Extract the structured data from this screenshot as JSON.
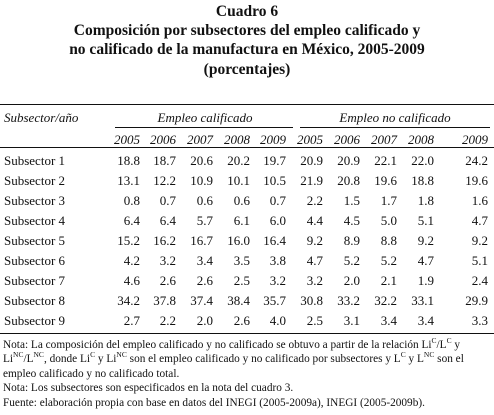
{
  "header": {
    "label": "Cuadro 6",
    "title": [
      "Composición por subsectores del empleo calificado y",
      "no calificado de la manufactura en México, 2005-2009"
    ],
    "subtitle": "(porcentajes)"
  },
  "table": {
    "stub_header": "Subsector/año",
    "groups": [
      "Empleo calificado",
      "Empleo no calificado"
    ],
    "years": [
      "2005",
      "2006",
      "2007",
      "2008",
      "2009",
      "2005",
      "2006",
      "2007",
      "2008",
      "2009"
    ],
    "rows": [
      {
        "label": "Subsector 1",
        "values": [
          "18.8",
          "18.7",
          "20.6",
          "20.2",
          "19.7",
          "20.9",
          "20.9",
          "22.1",
          "22.0",
          "24.2"
        ]
      },
      {
        "label": "Subsector 2",
        "values": [
          "13.1",
          "12.2",
          "10.9",
          "10.1",
          "10.5",
          "21.9",
          "20.8",
          "19.6",
          "18.8",
          "19.6"
        ]
      },
      {
        "label": "Subsector 3",
        "values": [
          "0.8",
          "0.7",
          "0.6",
          "0.6",
          "0.7",
          "2.2",
          "1.5",
          "1.7",
          "1.8",
          "1.6"
        ]
      },
      {
        "label": "Subsector 4",
        "values": [
          "6.4",
          "6.4",
          "5.7",
          "6.1",
          "6.0",
          "4.4",
          "4.5",
          "5.0",
          "5.1",
          "4.7"
        ]
      },
      {
        "label": "Subsector 5",
        "values": [
          "15.2",
          "16.2",
          "16.7",
          "16.0",
          "16.4",
          "9.2",
          "8.9",
          "8.8",
          "9.2",
          "9.2"
        ]
      },
      {
        "label": "Subsector 6",
        "values": [
          "4.2",
          "3.2",
          "3.4",
          "3.5",
          "3.8",
          "4.7",
          "5.2",
          "5.2",
          "4.7",
          "5.1"
        ]
      },
      {
        "label": "Subsector 7",
        "values": [
          "4.6",
          "2.6",
          "2.6",
          "2.5",
          "3.2",
          "3.2",
          "2.0",
          "2.1",
          "1.9",
          "2.4"
        ]
      },
      {
        "label": "Subsector 8",
        "values": [
          "34.2",
          "37.8",
          "37.4",
          "38.4",
          "35.7",
          "30.8",
          "33.2",
          "32.2",
          "33.1",
          "29.9"
        ]
      },
      {
        "label": "Subsector 9",
        "values": [
          "2.7",
          "2.2",
          "2.0",
          "2.6",
          "4.0",
          "2.5",
          "3.1",
          "3.4",
          "3.4",
          "3.3"
        ]
      }
    ]
  },
  "notes": {
    "note1": [
      "Nota: La composición del empleo calificado y no calificado se obtuvo a partir de la relación Li",
      "C",
      "/L",
      "C",
      " y Li",
      "NC",
      "/L",
      "NC",
      ", donde Li",
      "C",
      " y Li",
      "NC",
      " son el empleo calificado y no calificado por subsectores y L",
      "C",
      " y L",
      "NC",
      " son el empleo calificado y no calificado total."
    ],
    "note2": "Nota: Los subsectores son especificados en la nota del cuadro 3.",
    "source": "Fuente: elaboración propia con base en datos del INEGI (2005-2009a), INEGI (2005-2009b)."
  }
}
